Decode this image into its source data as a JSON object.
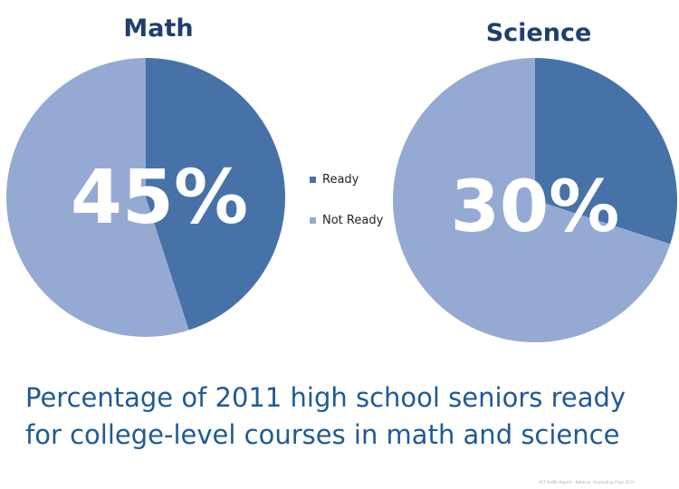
{
  "chart_data": [
    {
      "type": "pie",
      "title": "Math",
      "categories": [
        "Ready",
        "Not Ready"
      ],
      "values": [
        45,
        55
      ],
      "center_label": "45%",
      "colors": [
        "#4672a8",
        "#94aad2"
      ]
    },
    {
      "type": "pie",
      "title": "Science",
      "categories": [
        "Ready",
        "Not Ready"
      ],
      "values": [
        30,
        70
      ],
      "center_label": "30%",
      "colors": [
        "#4672a8",
        "#94aad2"
      ]
    }
  ],
  "legend": {
    "placement": "center",
    "items": [
      {
        "label": "Ready",
        "color": "#4672a8"
      },
      {
        "label": "Not Ready",
        "color": "#94aad2"
      }
    ]
  },
  "caption": "Percentage of 2011 high school seniors ready for college-level courses in math and science",
  "footer_note": "ACT Profile Report – National: Graduating Class 2011"
}
